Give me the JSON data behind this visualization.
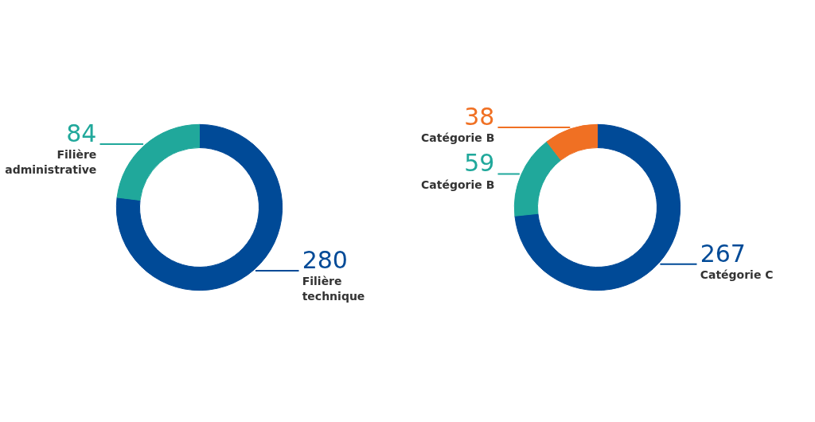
{
  "chart_data": [
    {
      "type": "donut",
      "categories": [
        "Filière technique",
        "Filière administrative"
      ],
      "values": [
        280,
        84
      ],
      "colors": [
        "#004a97",
        "#20a89b"
      ],
      "data_labels": true
    },
    {
      "type": "donut",
      "categories": [
        "Catégorie C",
        "Catégorie B",
        "Catégorie B"
      ],
      "values": [
        267,
        59,
        38
      ],
      "colors": [
        "#004a97",
        "#20a89b",
        "#f07023"
      ],
      "data_labels": true
    }
  ]
}
